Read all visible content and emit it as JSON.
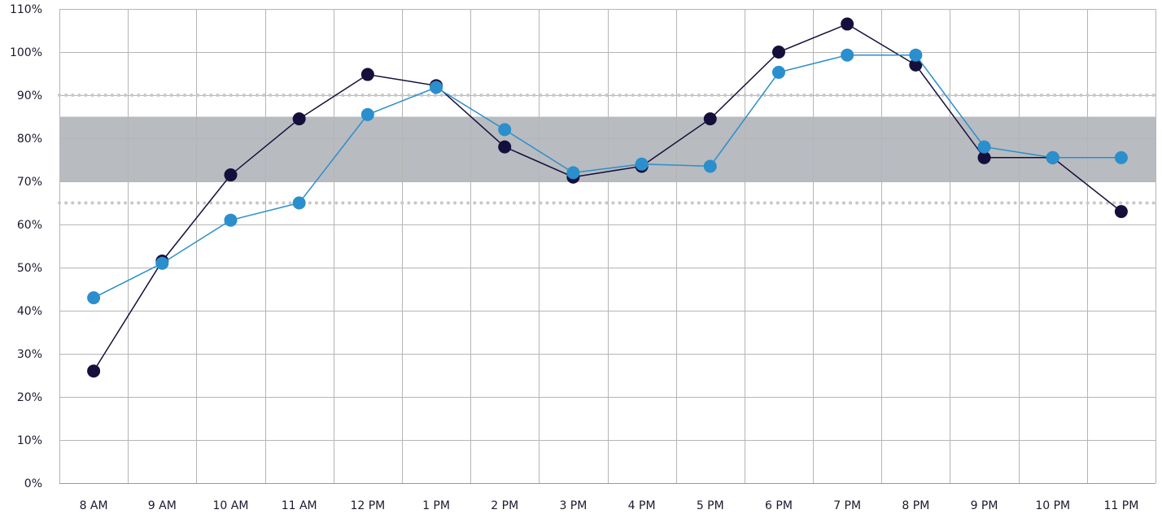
{
  "chart_data": {
    "type": "line",
    "categories": [
      "8 AM",
      "9 AM",
      "10 AM",
      "11 AM",
      "12 PM",
      "1 PM",
      "2 PM",
      "3 PM",
      "4 PM",
      "5 PM",
      "6 PM",
      "7 PM",
      "8 PM",
      "9 PM",
      "10 PM",
      "11 PM"
    ],
    "y_ticks": [
      "0%",
      "10%",
      "20%",
      "30%",
      "40%",
      "50%",
      "60%",
      "70%",
      "80%",
      "90%",
      "100%",
      "110%"
    ],
    "ylim": [
      0,
      110
    ],
    "grid": true,
    "band": {
      "from": 70,
      "to": 85,
      "color": "#b8bbc0"
    },
    "reference_lines": [
      {
        "value": 90,
        "style": "dotted",
        "color": "#c8c8c8"
      },
      {
        "value": 65,
        "style": "dotted",
        "color": "#c8c8c8"
      }
    ],
    "series": [
      {
        "color": "#150f3c",
        "values": [
          26,
          51.5,
          71.5,
          84.5,
          94.8,
          92.2,
          78,
          71,
          73.5,
          84.5,
          100,
          106.5,
          97,
          75.5,
          75.5,
          63
        ]
      },
      {
        "color": "#2a8fcc",
        "values": [
          43,
          51,
          61,
          65,
          85.5,
          91.8,
          82,
          72,
          74,
          73.5,
          95.3,
          99.3,
          99.3,
          78,
          75.5,
          75.5
        ]
      }
    ]
  }
}
